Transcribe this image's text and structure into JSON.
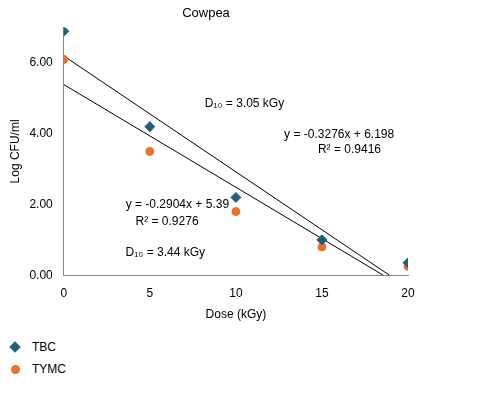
{
  "chart_data": {
    "type": "scatter",
    "title": "Cowpea",
    "x_label": "Dose (kGy)",
    "y_label": "Log CFU/ml",
    "x": [
      0,
      5,
      10,
      15,
      20
    ],
    "series": [
      {
        "name": "TBC",
        "color": "#1f5f7a",
        "marker": "diamond",
        "values": [
          6.9,
          4.2,
          2.2,
          1.0,
          0.35
        ],
        "trendline": {
          "slope": -0.3276,
          "intercept": 6.198,
          "x_range": [
            0,
            18.9
          ],
          "color": "#000000",
          "line_style": "solid",
          "equation": "y = -0.3276x + 6.198",
          "r2": "R² = 0.9416",
          "d10": "D₁₀ = 3.05 kGy"
        }
      },
      {
        "name": "TYMC",
        "color": "#e8702a",
        "marker": "circle",
        "values": [
          6.1,
          3.5,
          1.8,
          0.8,
          0.25
        ],
        "trendline": {
          "slope": -0.2904,
          "intercept": 5.39,
          "x_range": [
            0,
            18.6
          ],
          "color": "#000000",
          "line_style": "solid",
          "equation": "y = -0.2904x + 5.39",
          "r2": "R² = 0.9276",
          "d10": "D₁₀ = 3.44 kGy"
        }
      }
    ],
    "xlim": [
      0,
      20
    ],
    "xticks": [
      0,
      5,
      10,
      15,
      20
    ],
    "ylim": [
      0,
      7
    ],
    "yticks": [
      {
        "value": 0,
        "label": "0.00"
      },
      {
        "value": 2,
        "label": "2.00"
      },
      {
        "value": 4,
        "label": "4.00"
      },
      {
        "value": 6,
        "label": "6.00"
      }
    ],
    "grid": false,
    "legend": "bottom"
  }
}
